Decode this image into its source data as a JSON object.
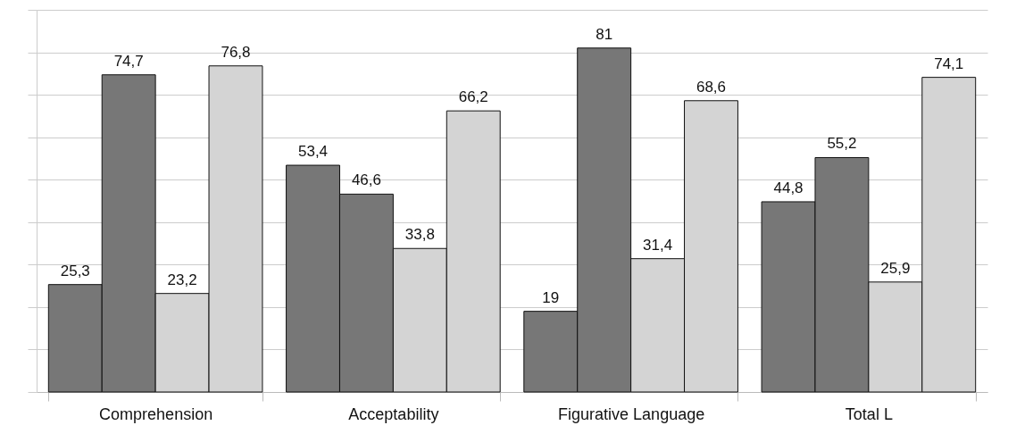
{
  "chart_data": {
    "type": "bar",
    "categories": [
      "Comprehension",
      "Acceptability",
      "Figurative  Language",
      "Total L"
    ],
    "series": [
      {
        "color": "#777777",
        "values": [
          25.3,
          53.4,
          19,
          44.8
        ],
        "value_labels": [
          "25,3",
          "53,4",
          "19",
          "44,8"
        ]
      },
      {
        "color": "#777777",
        "values": [
          74.7,
          46.6,
          81,
          55.2
        ],
        "value_labels": [
          "74,7",
          "46,6",
          "81",
          "55,2"
        ]
      },
      {
        "color": "#d4d4d4",
        "values": [
          23.2,
          33.8,
          31.4,
          25.9
        ],
        "value_labels": [
          "23,2",
          "33,8",
          "31,4",
          "25,9"
        ]
      },
      {
        "color": "#d4d4d4",
        "values": [
          76.8,
          66.2,
          68.6,
          74.1
        ],
        "value_labels": [
          "76,8",
          "66,2",
          "68,6",
          "74,1"
        ]
      }
    ],
    "ylim": [
      0,
      90
    ],
    "yticks": [
      {
        "value": 0,
        "label": null
      },
      {
        "value": 10,
        "label": null
      },
      {
        "value": 20,
        "label": null
      },
      {
        "value": 30,
        "label": null
      },
      {
        "value": 40,
        "label": null
      },
      {
        "value": 50,
        "label": null
      },
      {
        "value": 60,
        "label": null
      },
      {
        "value": 70,
        "label": null
      },
      {
        "value": 80,
        "label": null
      },
      {
        "value": 90,
        "label": null
      }
    ],
    "grid": "y",
    "tick_labels": "x"
  }
}
